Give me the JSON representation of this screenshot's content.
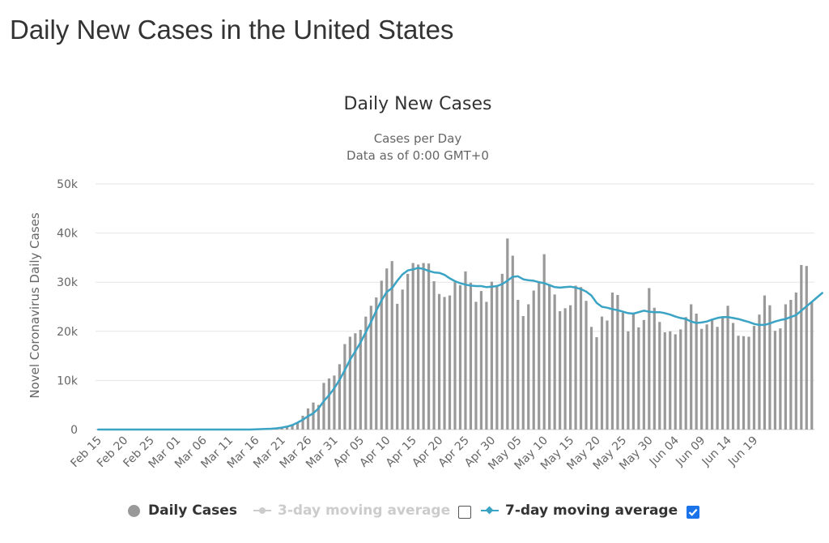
{
  "page": {
    "title": "Daily New Cases in the United States"
  },
  "chart_data": {
    "type": "bar",
    "title": "Daily New Cases",
    "subtitle_lines": [
      "Cases per Day",
      "Data as of 0:00 GMT+0"
    ],
    "ylabel": "Novel Coronavirus Daily Cases",
    "ylim": [
      0,
      50000
    ],
    "yticks": [
      0,
      10000,
      20000,
      30000,
      40000,
      50000
    ],
    "ytick_labels": [
      "0",
      "10k",
      "20k",
      "30k",
      "40k",
      "50k"
    ],
    "grid": true,
    "start_date": "Feb 15",
    "xtick_labels": [
      "Feb 15",
      "Feb 20",
      "Feb 25",
      "Mar 01",
      "Mar 06",
      "Mar 11",
      "Mar 16",
      "Mar 21",
      "Mar 26",
      "Mar 31",
      "Apr 05",
      "Apr 10",
      "Apr 15",
      "Apr 20",
      "Apr 25",
      "Apr 30",
      "May 05",
      "May 10",
      "May 15",
      "May 20",
      "May 25",
      "May 30",
      "Jun 04",
      "Jun 09",
      "Jun 14",
      "Jun 19"
    ],
    "legend_position": "bottom",
    "bar_color": "#999999",
    "line_color": "#3ba3c4",
    "series": [
      {
        "name": "Daily Cases",
        "kind": "bar",
        "values": [
          0,
          0,
          0,
          0,
          0,
          0,
          0,
          0,
          0,
          0,
          0,
          0,
          0,
          0,
          0,
          0,
          0,
          0,
          0,
          0,
          0,
          0,
          0,
          0,
          0,
          0,
          0,
          0,
          0,
          0,
          0,
          0,
          0,
          0,
          200,
          400,
          600,
          800,
          1500,
          2800,
          4300,
          5500,
          5000,
          9500,
          10400,
          11000,
          13300,
          17400,
          18900,
          19600,
          20300,
          23000,
          25200,
          26900,
          30300,
          32800,
          34300,
          25600,
          28500,
          31700,
          33900,
          33600,
          33900,
          33800,
          30200,
          27600,
          27000,
          27300,
          30000,
          29400,
          32200,
          29900,
          26000,
          28200,
          26000,
          30100,
          29400,
          31700,
          38900,
          35400,
          26400,
          23100,
          25500,
          28300,
          30200,
          35700,
          29600,
          27500,
          24100,
          24700,
          25300,
          29300,
          29000,
          26200,
          20900,
          18800,
          23000,
          22200,
          27900,
          27400,
          23800,
          20000,
          23500,
          20800,
          22300,
          28800,
          24800,
          21900,
          19800,
          20000,
          19400,
          20400,
          22900,
          25500,
          23600,
          20500,
          21400,
          22400,
          20900,
          22900,
          25200,
          21700,
          19100,
          19000,
          18900,
          21100,
          23400,
          27300,
          25300,
          20100,
          20600,
          25500,
          26400,
          27900,
          33500,
          33300,
          26000
        ],
        "visible": true
      },
      {
        "name": "3-day moving average",
        "kind": "line",
        "visible": false
      },
      {
        "name": "7-day moving average",
        "kind": "line",
        "values": [
          0,
          0,
          0,
          0,
          0,
          0,
          0,
          0,
          0,
          0,
          0,
          0,
          0,
          0,
          0,
          0,
          0,
          0,
          0,
          0,
          0,
          0,
          0,
          0,
          0,
          0,
          0,
          0,
          0,
          0,
          50,
          80,
          120,
          160,
          250,
          400,
          600,
          900,
          1400,
          2000,
          2700,
          3300,
          4300,
          5800,
          7000,
          8400,
          10100,
          12100,
          14200,
          15900,
          17700,
          19800,
          21900,
          24200,
          26300,
          28000,
          28800,
          30300,
          31600,
          32400,
          32600,
          32900,
          32700,
          32300,
          32000,
          31900,
          31500,
          30800,
          30200,
          29800,
          29500,
          29300,
          29200,
          29200,
          29000,
          29100,
          29200,
          29600,
          30300,
          31100,
          31200,
          30600,
          30400,
          30300,
          30000,
          29800,
          29400,
          29000,
          28900,
          29000,
          29100,
          28900,
          28600,
          28100,
          27300,
          25800,
          25000,
          24800,
          24500,
          24300,
          24000,
          23700,
          23600,
          23900,
          24200,
          24000,
          23900,
          23900,
          23700,
          23400,
          23000,
          22700,
          22500,
          22000,
          21700,
          21800,
          22000,
          22400,
          22700,
          22900,
          22900,
          22700,
          22500,
          22200,
          21900,
          21500,
          21300,
          21300,
          21600,
          22000,
          22300,
          22500,
          22900,
          23300,
          24200,
          25100,
          26000,
          26900,
          27800
        ],
        "visible": true
      }
    ]
  },
  "legend": {
    "items": [
      {
        "label": "Daily Cases",
        "icon": "circle-marker",
        "color": "#999999",
        "enabled": true
      },
      {
        "label": "3-day moving average",
        "icon": "line-dot-marker",
        "color": "#cccccc",
        "enabled": false,
        "checkbox_checked": false
      },
      {
        "label": "7-day moving average",
        "icon": "line-diamond-marker",
        "color": "#3ba3c4",
        "enabled": true,
        "checkbox_checked": true
      }
    ]
  }
}
